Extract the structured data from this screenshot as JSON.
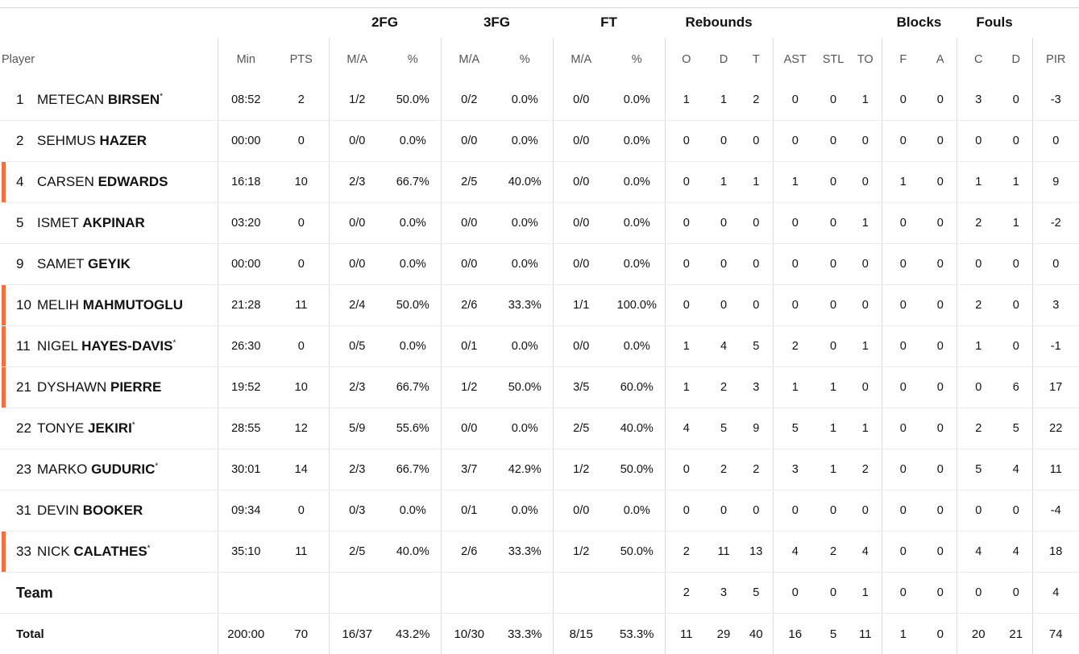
{
  "groups": {
    "fg2": "2FG",
    "fg3": "3FG",
    "ft": "FT",
    "reb": "Rebounds",
    "blk": "Blocks",
    "fouls": "Fouls"
  },
  "columns": {
    "player": "Player",
    "min": "Min",
    "pts": "PTS",
    "fg2_ma": "M/A",
    "fg2_pct": "%",
    "fg3_ma": "M/A",
    "fg3_pct": "%",
    "ft_ma": "M/A",
    "ft_pct": "%",
    "reb_o": "O",
    "reb_d": "D",
    "reb_t": "T",
    "ast": "AST",
    "stl": "STL",
    "to": "TO",
    "blk_f": "F",
    "blk_a": "A",
    "foul_c": "C",
    "foul_d": "D",
    "pir": "PIR"
  },
  "players": [
    {
      "num": "1",
      "first": "METECAN",
      "last": "BIRSEN",
      "star": "*",
      "bar": false,
      "min": "08:52",
      "pts": "2",
      "fg2_ma": "1/2",
      "fg2_pct": "50.0%",
      "fg3_ma": "0/2",
      "fg3_pct": "0.0%",
      "ft_ma": "0/0",
      "ft_pct": "0.0%",
      "o": "1",
      "d": "1",
      "t": "2",
      "ast": "0",
      "stl": "0",
      "to": "1",
      "bf": "0",
      "ba": "0",
      "fc": "3",
      "fd": "0",
      "pir": "-3"
    },
    {
      "num": "2",
      "first": "SEHMUS",
      "last": "HAZER",
      "star": "",
      "bar": false,
      "min": "00:00",
      "pts": "0",
      "fg2_ma": "0/0",
      "fg2_pct": "0.0%",
      "fg3_ma": "0/0",
      "fg3_pct": "0.0%",
      "ft_ma": "0/0",
      "ft_pct": "0.0%",
      "o": "0",
      "d": "0",
      "t": "0",
      "ast": "0",
      "stl": "0",
      "to": "0",
      "bf": "0",
      "ba": "0",
      "fc": "0",
      "fd": "0",
      "pir": "0"
    },
    {
      "num": "4",
      "first": "CARSEN",
      "last": "EDWARDS",
      "star": "",
      "bar": true,
      "min": "16:18",
      "pts": "10",
      "fg2_ma": "2/3",
      "fg2_pct": "66.7%",
      "fg3_ma": "2/5",
      "fg3_pct": "40.0%",
      "ft_ma": "0/0",
      "ft_pct": "0.0%",
      "o": "0",
      "d": "1",
      "t": "1",
      "ast": "1",
      "stl": "0",
      "to": "0",
      "bf": "1",
      "ba": "0",
      "fc": "1",
      "fd": "1",
      "pir": "9"
    },
    {
      "num": "5",
      "first": "ISMET",
      "last": "AKPINAR",
      "star": "",
      "bar": false,
      "min": "03:20",
      "pts": "0",
      "fg2_ma": "0/0",
      "fg2_pct": "0.0%",
      "fg3_ma": "0/0",
      "fg3_pct": "0.0%",
      "ft_ma": "0/0",
      "ft_pct": "0.0%",
      "o": "0",
      "d": "0",
      "t": "0",
      "ast": "0",
      "stl": "0",
      "to": "1",
      "bf": "0",
      "ba": "0",
      "fc": "2",
      "fd": "1",
      "pir": "-2"
    },
    {
      "num": "9",
      "first": "SAMET",
      "last": "GEYIK",
      "star": "",
      "bar": false,
      "min": "00:00",
      "pts": "0",
      "fg2_ma": "0/0",
      "fg2_pct": "0.0%",
      "fg3_ma": "0/0",
      "fg3_pct": "0.0%",
      "ft_ma": "0/0",
      "ft_pct": "0.0%",
      "o": "0",
      "d": "0",
      "t": "0",
      "ast": "0",
      "stl": "0",
      "to": "0",
      "bf": "0",
      "ba": "0",
      "fc": "0",
      "fd": "0",
      "pir": "0"
    },
    {
      "num": "10",
      "first": "MELIH",
      "last": "MAHMUTOGLU",
      "star": "",
      "bar": true,
      "min": "21:28",
      "pts": "11",
      "fg2_ma": "2/4",
      "fg2_pct": "50.0%",
      "fg3_ma": "2/6",
      "fg3_pct": "33.3%",
      "ft_ma": "1/1",
      "ft_pct": "100.0%",
      "o": "0",
      "d": "0",
      "t": "0",
      "ast": "0",
      "stl": "0",
      "to": "0",
      "bf": "0",
      "ba": "0",
      "fc": "2",
      "fd": "0",
      "pir": "3"
    },
    {
      "num": "11",
      "first": "NIGEL",
      "last": "HAYES-DAVIS",
      "star": "*",
      "bar": true,
      "min": "26:30",
      "pts": "0",
      "fg2_ma": "0/5",
      "fg2_pct": "0.0%",
      "fg3_ma": "0/1",
      "fg3_pct": "0.0%",
      "ft_ma": "0/0",
      "ft_pct": "0.0%",
      "o": "1",
      "d": "4",
      "t": "5",
      "ast": "2",
      "stl": "0",
      "to": "1",
      "bf": "0",
      "ba": "0",
      "fc": "1",
      "fd": "0",
      "pir": "-1"
    },
    {
      "num": "21",
      "first": "DYSHAWN",
      "last": "PIERRE",
      "star": "",
      "bar": true,
      "min": "19:52",
      "pts": "10",
      "fg2_ma": "2/3",
      "fg2_pct": "66.7%",
      "fg3_ma": "1/2",
      "fg3_pct": "50.0%",
      "ft_ma": "3/5",
      "ft_pct": "60.0%",
      "o": "1",
      "d": "2",
      "t": "3",
      "ast": "1",
      "stl": "1",
      "to": "0",
      "bf": "0",
      "ba": "0",
      "fc": "0",
      "fd": "6",
      "pir": "17"
    },
    {
      "num": "22",
      "first": "TONYE",
      "last": "JEKIRI",
      "star": "*",
      "bar": false,
      "min": "28:55",
      "pts": "12",
      "fg2_ma": "5/9",
      "fg2_pct": "55.6%",
      "fg3_ma": "0/0",
      "fg3_pct": "0.0%",
      "ft_ma": "2/5",
      "ft_pct": "40.0%",
      "o": "4",
      "d": "5",
      "t": "9",
      "ast": "5",
      "stl": "1",
      "to": "1",
      "bf": "0",
      "ba": "0",
      "fc": "2",
      "fd": "5",
      "pir": "22"
    },
    {
      "num": "23",
      "first": "MARKO",
      "last": "GUDURIC",
      "star": "*",
      "bar": false,
      "min": "30:01",
      "pts": "14",
      "fg2_ma": "2/3",
      "fg2_pct": "66.7%",
      "fg3_ma": "3/7",
      "fg3_pct": "42.9%",
      "ft_ma": "1/2",
      "ft_pct": "50.0%",
      "o": "0",
      "d": "2",
      "t": "2",
      "ast": "3",
      "stl": "1",
      "to": "2",
      "bf": "0",
      "ba": "0",
      "fc": "5",
      "fd": "4",
      "pir": "11"
    },
    {
      "num": "31",
      "first": "DEVIN",
      "last": "BOOKER",
      "star": "",
      "bar": false,
      "min": "09:34",
      "pts": "0",
      "fg2_ma": "0/3",
      "fg2_pct": "0.0%",
      "fg3_ma": "0/1",
      "fg3_pct": "0.0%",
      "ft_ma": "0/0",
      "ft_pct": "0.0%",
      "o": "0",
      "d": "0",
      "t": "0",
      "ast": "0",
      "stl": "0",
      "to": "0",
      "bf": "0",
      "ba": "0",
      "fc": "0",
      "fd": "0",
      "pir": "-4"
    },
    {
      "num": "33",
      "first": "NICK",
      "last": "CALATHES",
      "star": "*",
      "bar": true,
      "min": "35:10",
      "pts": "11",
      "fg2_ma": "2/5",
      "fg2_pct": "40.0%",
      "fg3_ma": "2/6",
      "fg3_pct": "33.3%",
      "ft_ma": "1/2",
      "ft_pct": "50.0%",
      "o": "2",
      "d": "11",
      "t": "13",
      "ast": "4",
      "stl": "2",
      "to": "4",
      "bf": "0",
      "ba": "0",
      "fc": "4",
      "fd": "4",
      "pir": "18"
    }
  ],
  "team": {
    "label": "Team",
    "o": "2",
    "d": "3",
    "t": "5",
    "ast": "0",
    "stl": "0",
    "to": "1",
    "bf": "0",
    "ba": "0",
    "fc": "0",
    "fd": "0",
    "pir": "4"
  },
  "total": {
    "label": "Total",
    "min": "200:00",
    "pts": "70",
    "fg2_ma": "16/37",
    "fg2_pct": "43.2%",
    "fg3_ma": "10/30",
    "fg3_pct": "33.3%",
    "ft_ma": "8/15",
    "ft_pct": "53.3%",
    "o": "11",
    "d": "29",
    "t": "40",
    "ast": "16",
    "stl": "5",
    "to": "11",
    "bf": "1",
    "ba": "0",
    "fc": "20",
    "fd": "21",
    "pir": "74"
  },
  "colors": {
    "bar": "#f07040"
  }
}
